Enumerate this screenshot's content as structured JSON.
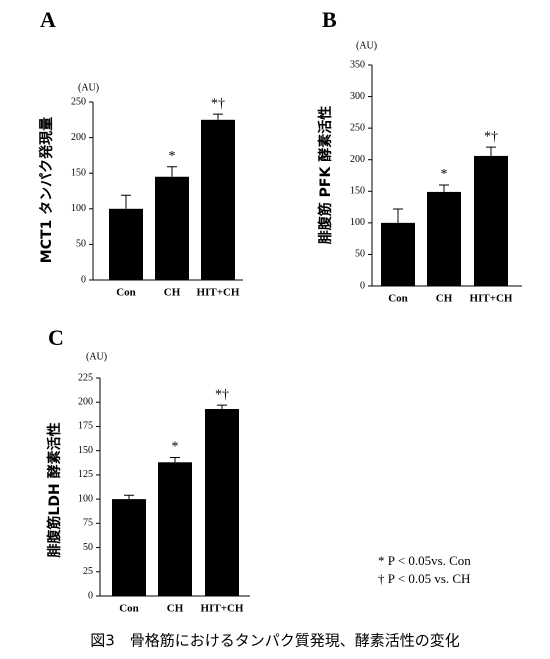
{
  "chart_data": [
    {
      "type": "bar",
      "panel": "A",
      "unit": "(AU)",
      "ylabel": "MCT1 タンパク発現量",
      "categories": [
        "Con",
        "CH",
        "HIT+CH"
      ],
      "values": [
        100,
        145,
        225
      ],
      "errors": [
        19,
        14,
        8
      ],
      "significance": [
        null,
        "*",
        "*†"
      ],
      "color": "#000000",
      "ylim": [
        0,
        250
      ],
      "yticks": [
        0,
        50,
        100,
        150,
        200,
        250
      ]
    },
    {
      "type": "bar",
      "panel": "B",
      "unit": "(AU)",
      "ylabel": "腓腹筋 PFK 酵素活性",
      "categories": [
        "Con",
        "CH",
        "HIT+CH"
      ],
      "values": [
        100,
        149,
        206
      ],
      "errors": [
        22,
        11,
        14
      ],
      "significance": [
        null,
        "*",
        "*†"
      ],
      "color": "#000000",
      "ylim": [
        0,
        350
      ],
      "yticks": [
        0,
        50,
        100,
        150,
        200,
        250,
        300,
        350
      ]
    },
    {
      "type": "bar",
      "panel": "C",
      "unit": "(AU)",
      "ylabel": "腓腹筋LDH 酵素活性",
      "categories": [
        "Con",
        "CH",
        "HIT+CH"
      ],
      "values": [
        100,
        138,
        193
      ],
      "errors": [
        4,
        5,
        4
      ],
      "significance": [
        null,
        "*",
        "*†"
      ],
      "color": "#000000",
      "ylim": [
        0,
        225
      ],
      "yticks": [
        0,
        25,
        50,
        75,
        100,
        125,
        150,
        175,
        200,
        225
      ]
    }
  ],
  "notes": [
    "* P < 0.05vs. Con",
    "† P < 0.05 vs. CH"
  ],
  "caption": "図3　骨格筋におけるタンパク質発現、酵素活性の変化"
}
